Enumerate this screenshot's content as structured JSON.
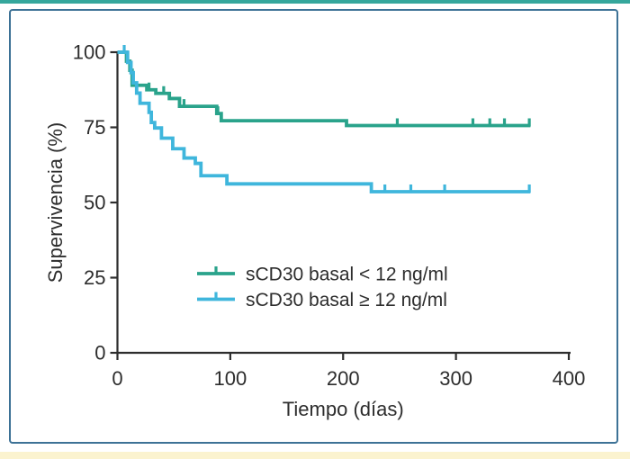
{
  "figure": {
    "top_bar_color": "#35a79c",
    "bottom_bar_color": "#fbf3cf",
    "panel_border_color": "#3d7296",
    "background_color": "#ffffff",
    "axis_color": "#2d2d2d",
    "text_color": "#2d2d2d"
  },
  "chart_data": {
    "type": "line",
    "subtype": "kaplan-meier-step",
    "title": "",
    "xlabel": "Tiempo (días)",
    "ylabel": "Supervivencia (%)",
    "xlim": [
      0,
      400
    ],
    "ylim": [
      0,
      100
    ],
    "x_ticks": [
      0,
      100,
      200,
      300,
      400
    ],
    "y_ticks": [
      0,
      25,
      50,
      75,
      100
    ],
    "grid": false,
    "legend_position": "inside-bottom-left",
    "follow_up_end_day": 366,
    "series": [
      {
        "name": "sCD30 basal < 12 ng/ml",
        "color": "#2aa38b",
        "steps": [
          [
            0,
            100
          ],
          [
            8,
            97
          ],
          [
            11,
            94
          ],
          [
            13,
            89
          ],
          [
            26,
            87.5
          ],
          [
            34,
            86.3
          ],
          [
            46,
            84.6
          ],
          [
            55,
            82
          ],
          [
            88,
            79.6
          ],
          [
            92,
            77.2
          ],
          [
            203,
            75.6
          ],
          [
            366,
            75.6
          ]
        ],
        "censor_days": [
          28,
          41,
          59,
          89,
          248,
          315,
          330,
          343,
          365
        ]
      },
      {
        "name": "sCD30 basal ≥ 12 ng/ml",
        "color": "#3fb6dc",
        "steps": [
          [
            0,
            100
          ],
          [
            9,
            96.6
          ],
          [
            12,
            93.2
          ],
          [
            14,
            89.8
          ],
          [
            17,
            86.4
          ],
          [
            20,
            83
          ],
          [
            28,
            80
          ],
          [
            30,
            76.6
          ],
          [
            33,
            74.8
          ],
          [
            39,
            71.4
          ],
          [
            49,
            67.9
          ],
          [
            59,
            64.8
          ],
          [
            69,
            63
          ],
          [
            74,
            58.9
          ],
          [
            97,
            56.2
          ],
          [
            225,
            53.6
          ],
          [
            366,
            53.6
          ]
        ],
        "censor_days": [
          6,
          237,
          260,
          290,
          365
        ]
      }
    ]
  }
}
